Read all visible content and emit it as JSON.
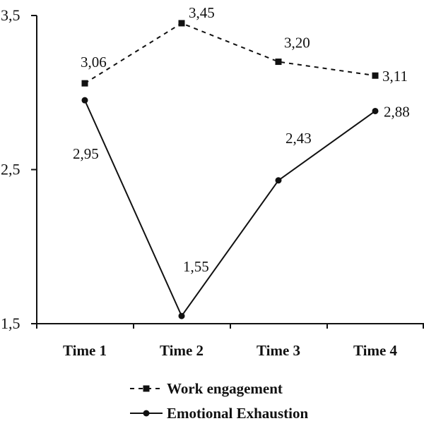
{
  "chart_data": {
    "type": "line",
    "categories": [
      "Time 1",
      "Time 2",
      "Time 3",
      "Time 4"
    ],
    "ylim": [
      1.5,
      3.5
    ],
    "yticks": [
      1.5,
      2.5,
      3.5
    ],
    "ytick_labels": [
      "1,5",
      "2,5",
      "3,5"
    ],
    "grid": false,
    "legend_position": "bottom",
    "series": [
      {
        "name": "Work engagement",
        "values": [
          3.06,
          3.45,
          3.2,
          3.11
        ],
        "labels": [
          "3,06",
          "3,45",
          "3,20",
          "3,11"
        ],
        "line_style": "dashed",
        "marker": "square",
        "color": "#111111"
      },
      {
        "name": "Emotional Exhaustion",
        "values": [
          2.95,
          1.55,
          2.43,
          2.88
        ],
        "labels": [
          "2,95",
          "1,55",
          "2,43",
          "2,88"
        ],
        "line_style": "solid",
        "marker": "circle",
        "color": "#111111"
      }
    ]
  }
}
